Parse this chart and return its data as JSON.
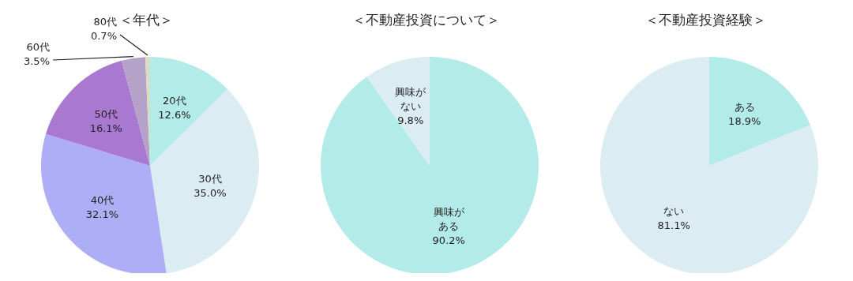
{
  "chart_data": [
    {
      "type": "pie",
      "title": "＜年代＞",
      "categories": [
        "20代",
        "30代",
        "40代",
        "50代",
        "60代",
        "80代"
      ],
      "values": [
        12.6,
        35.0,
        32.1,
        16.1,
        3.5,
        0.7
      ],
      "colors": [
        "#b3ebe8",
        "#dbedf3",
        "#adaef5",
        "#a979d2",
        "#b4a2c9",
        "#d6dfc5"
      ],
      "value_labels": [
        "12.6%",
        "35.0%",
        "32.1%",
        "16.1%",
        "3.5%",
        "0.7%"
      ],
      "legend": false
    },
    {
      "type": "pie",
      "title": "＜不動産投資について＞",
      "categories": [
        "興味がある",
        "興味がない"
      ],
      "values": [
        90.2,
        9.8
      ],
      "colors": [
        "#b3ebe8",
        "#dbedf3"
      ],
      "value_labels": [
        "90.2%",
        "9.8%"
      ],
      "legend": false
    },
    {
      "type": "pie",
      "title": "＜不動産投資経験＞",
      "categories": [
        "ある",
        "ない"
      ],
      "values": [
        18.9,
        81.1
      ],
      "colors": [
        "#b3ebe8",
        "#dbedf3"
      ],
      "value_labels": [
        "18.9%",
        "81.1%"
      ],
      "legend": false
    }
  ]
}
